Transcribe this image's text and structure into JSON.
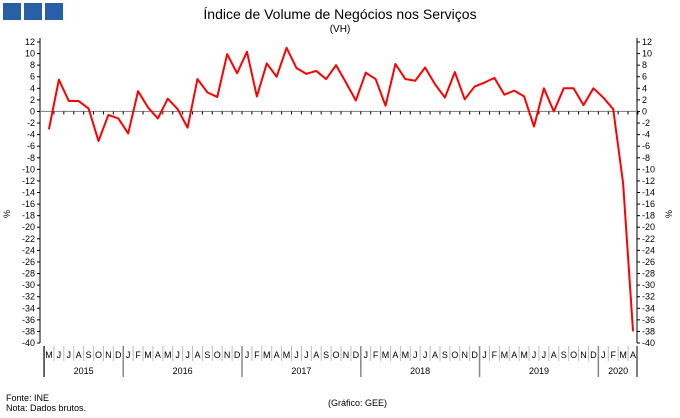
{
  "logo_colors": [
    "#2860a8"
  ],
  "chart_data": {
    "type": "line",
    "title": "Índice de Volume de Negócios nos Serviços",
    "subtitle": "(VH)",
    "ylabel_left": "%",
    "ylabel_right": "%",
    "ylim": [
      -40,
      12
    ],
    "yticks": [
      12,
      10,
      8,
      6,
      4,
      2,
      0,
      -2,
      -4,
      -6,
      -8,
      -10,
      -12,
      -14,
      -16,
      -18,
      -20,
      -22,
      -24,
      -26,
      -28,
      -30,
      -32,
      -34,
      -36,
      -38,
      -40
    ],
    "grid": false,
    "zero_line": true,
    "line_color": "#ff0000",
    "month_labels": [
      "M",
      "J",
      "J",
      "A",
      "S",
      "O",
      "N",
      "D",
      "J",
      "F",
      "M",
      "A",
      "M",
      "J",
      "J",
      "A",
      "S",
      "O",
      "N",
      "D",
      "J",
      "F",
      "M",
      "A",
      "M",
      "J",
      "J",
      "A",
      "S",
      "O",
      "N",
      "D",
      "J",
      "F",
      "M",
      "A",
      "M",
      "J",
      "J",
      "A",
      "S",
      "O",
      "N",
      "D",
      "J",
      "F",
      "M",
      "A",
      "M",
      "J",
      "J",
      "A",
      "S",
      "O",
      "N",
      "D",
      "J",
      "F",
      "M",
      "A"
    ],
    "years": [
      {
        "label": "2015",
        "months": 8
      },
      {
        "label": "2016",
        "months": 12
      },
      {
        "label": "2017",
        "months": 12
      },
      {
        "label": "2018",
        "months": 12
      },
      {
        "label": "2019",
        "months": 12
      },
      {
        "label": "2020",
        "months": 4
      }
    ],
    "values": [
      -3.0,
      5.5,
      1.8,
      1.8,
      0.5,
      -5.1,
      -0.6,
      -1.2,
      -3.8,
      3.5,
      0.7,
      -1.2,
      2.2,
      0.4,
      -2.8,
      5.6,
      3.3,
      2.5,
      9.9,
      6.6,
      10.3,
      2.6,
      8.3,
      6.0,
      11.0,
      7.5,
      6.5,
      7.0,
      5.6,
      8.0,
      5.0,
      1.9,
      6.7,
      5.6,
      1.0,
      8.2,
      5.6,
      5.3,
      7.6,
      4.7,
      2.4,
      6.8,
      2.1,
      4.3,
      5.0,
      5.8,
      2.9,
      3.6,
      2.6,
      -2.6,
      4.0,
      0.0,
      4.0,
      4.0,
      1.1,
      4.0,
      2.4,
      0.4,
      -12.4,
      -37.9
    ]
  },
  "footer": {
    "source": "Fonte: INE",
    "note": "Nota: Dados brutos.",
    "credit": "(Gráfico: GEE)"
  }
}
